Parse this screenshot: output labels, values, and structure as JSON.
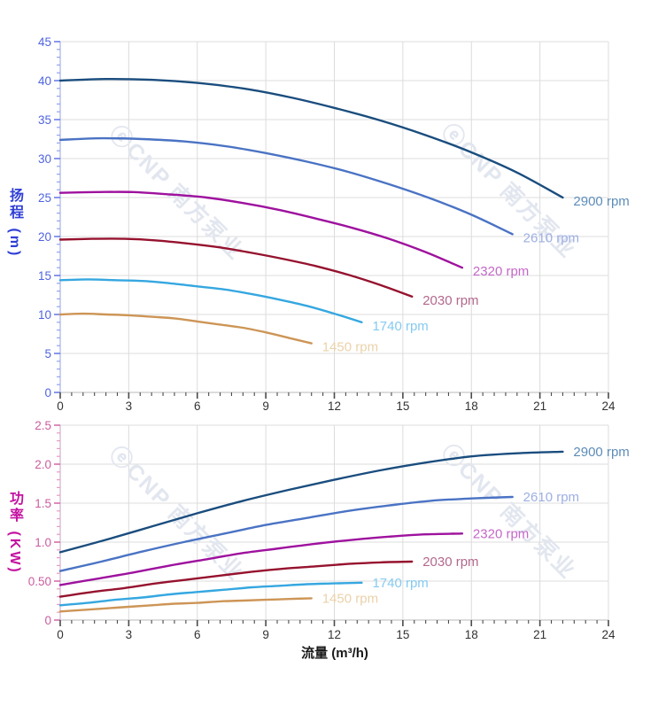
{
  "watermark": {
    "text": "ⓔCNP 南方泵业",
    "color": "#e2e6ef"
  },
  "grid_color": "#dcdcdc",
  "x_axis_style": {
    "line": "#c6c6c6",
    "tick": "#4a4a4a",
    "tick_label": "#333333",
    "title_color": "#1a1a1a"
  },
  "chart_data": [
    {
      "type": "line",
      "title": "",
      "xlabel": "流量 (m³/h)",
      "ylabel": "扬程 (m)",
      "xlim": [
        0,
        24
      ],
      "ylim": [
        0,
        45
      ],
      "x_major_step": 3,
      "x_minor_step": 0.5,
      "y_major_step": 5,
      "y_minor_step": 1,
      "x_tick_labels": [
        "0",
        "3",
        "6",
        "9",
        "12",
        "15",
        "18",
        "21",
        "24"
      ],
      "y_tick_labels": [
        "0",
        "5",
        "10",
        "15",
        "20",
        "25",
        "30",
        "35",
        "40",
        "45"
      ],
      "grid": true,
      "legend_position": "end-of-line",
      "axis_style": {
        "line": "#b2bdee",
        "major_tick": "#6b7ee6",
        "minor_tick": "#93a3ec",
        "tick_label": "#4f64e0",
        "title_color": "#2f3fd6"
      },
      "series": [
        {
          "name": "2900 rpm",
          "color": "#1a4d7e",
          "label_color": "#5d8cb8",
          "points": [
            [
              0,
              40.0
            ],
            [
              2,
              40.2
            ],
            [
              4,
              40.1
            ],
            [
              6,
              39.7
            ],
            [
              8,
              39.0
            ],
            [
              10,
              37.9
            ],
            [
              12,
              36.5
            ],
            [
              14,
              34.9
            ],
            [
              16,
              33.0
            ],
            [
              18,
              30.8
            ],
            [
              20,
              28.2
            ],
            [
              22,
              25.0
            ]
          ]
        },
        {
          "name": "2610 rpm",
          "color": "#4a73c4",
          "label_color": "#9dafe4",
          "points": [
            [
              0,
              32.4
            ],
            [
              1.8,
              32.6
            ],
            [
              3.6,
              32.5
            ],
            [
              5.4,
              32.2
            ],
            [
              7.2,
              31.6
            ],
            [
              9,
              30.7
            ],
            [
              10.8,
              29.6
            ],
            [
              12.6,
              28.3
            ],
            [
              14.4,
              26.7
            ],
            [
              16.2,
              24.9
            ],
            [
              18,
              22.8
            ],
            [
              19.8,
              20.3
            ]
          ]
        },
        {
          "name": "2320 rpm",
          "color": "#9e119e",
          "label_color": "#c468c8",
          "points": [
            [
              0,
              25.6
            ],
            [
              1.6,
              25.7
            ],
            [
              3.2,
              25.7
            ],
            [
              4.8,
              25.4
            ],
            [
              6.4,
              25.0
            ],
            [
              8,
              24.3
            ],
            [
              9.6,
              23.4
            ],
            [
              11.2,
              22.3
            ],
            [
              12.8,
              21.1
            ],
            [
              14.4,
              19.7
            ],
            [
              16,
              18.0
            ],
            [
              17.6,
              16.0
            ]
          ]
        },
        {
          "name": "2030 rpm",
          "color": "#96122e",
          "label_color": "#b2688c",
          "points": [
            [
              0,
              19.6
            ],
            [
              1.4,
              19.7
            ],
            [
              2.8,
              19.7
            ],
            [
              4.2,
              19.5
            ],
            [
              5.6,
              19.1
            ],
            [
              7,
              18.6
            ],
            [
              8.4,
              17.9
            ],
            [
              9.8,
              17.1
            ],
            [
              11.2,
              16.2
            ],
            [
              12.6,
              15.1
            ],
            [
              14,
              13.8
            ],
            [
              15.4,
              12.3
            ]
          ]
        },
        {
          "name": "1740 rpm",
          "color": "#35a7e0",
          "label_color": "#85caf0",
          "points": [
            [
              0,
              14.4
            ],
            [
              1.2,
              14.5
            ],
            [
              2.4,
              14.4
            ],
            [
              3.6,
              14.3
            ],
            [
              4.8,
              14.0
            ],
            [
              6,
              13.6
            ],
            [
              7.2,
              13.2
            ],
            [
              8.4,
              12.6
            ],
            [
              9.6,
              11.9
            ],
            [
              10.8,
              11.1
            ],
            [
              12,
              10.1
            ],
            [
              13.2,
              9.0
            ]
          ]
        },
        {
          "name": "1450 rpm",
          "color": "#cd9556",
          "label_color": "#ead2aa",
          "points": [
            [
              0,
              10.0
            ],
            [
              1,
              10.1
            ],
            [
              2,
              10.0
            ],
            [
              3,
              9.9
            ],
            [
              4,
              9.7
            ],
            [
              5,
              9.5
            ],
            [
              6,
              9.1
            ],
            [
              7,
              8.7
            ],
            [
              8,
              8.3
            ],
            [
              9,
              7.7
            ],
            [
              10,
              7.0
            ],
            [
              11,
              6.3
            ]
          ]
        }
      ]
    },
    {
      "type": "line",
      "title": "",
      "xlabel": "流量 (m³/h)",
      "ylabel": "功率 (KW)",
      "xlim": [
        0,
        24
      ],
      "ylim": [
        0,
        2.5
      ],
      "x_major_step": 3,
      "x_minor_step": 0.5,
      "y_major_step": 0.5,
      "y_minor_step": 0.1,
      "x_tick_labels": [
        "0",
        "3",
        "6",
        "9",
        "12",
        "15",
        "18",
        "21",
        "24"
      ],
      "y_tick_labels": [
        "0",
        "0.50",
        "1.0",
        "1.5",
        "2.0",
        "2.5"
      ],
      "grid": true,
      "legend_position": "end-of-line",
      "axis_style": {
        "line": "#d9bcd6",
        "major_tick": "#d470a8",
        "minor_tick": "#e59cc4",
        "tick_label": "#cb5c9f",
        "title_color": "#c312a0"
      },
      "series": [
        {
          "name": "2900 rpm",
          "color": "#1a4d7e",
          "label_color": "#5d8cb8",
          "points": [
            [
              0,
              0.87
            ],
            [
              2,
              1.03
            ],
            [
              4,
              1.2
            ],
            [
              6,
              1.37
            ],
            [
              8,
              1.53
            ],
            [
              10,
              1.67
            ],
            [
              12,
              1.8
            ],
            [
              14,
              1.92
            ],
            [
              16,
              2.02
            ],
            [
              18,
              2.1
            ],
            [
              20,
              2.14
            ],
            [
              22,
              2.16
            ]
          ]
        },
        {
          "name": "2610 rpm",
          "color": "#4a73c4",
          "label_color": "#9dafe4",
          "points": [
            [
              0,
              0.63
            ],
            [
              1.8,
              0.75
            ],
            [
              3.6,
              0.88
            ],
            [
              5.4,
              1.0
            ],
            [
              7.2,
              1.11
            ],
            [
              9,
              1.22
            ],
            [
              10.8,
              1.31
            ],
            [
              12.6,
              1.4
            ],
            [
              14.4,
              1.47
            ],
            [
              16.2,
              1.53
            ],
            [
              18,
              1.56
            ],
            [
              19.8,
              1.58
            ]
          ]
        },
        {
          "name": "2320 rpm",
          "color": "#9e119e",
          "label_color": "#c468c8",
          "points": [
            [
              0,
              0.45
            ],
            [
              1.6,
              0.53
            ],
            [
              3.2,
              0.61
            ],
            [
              4.8,
              0.7
            ],
            [
              6.4,
              0.78
            ],
            [
              8,
              0.86
            ],
            [
              9.6,
              0.92
            ],
            [
              11.2,
              0.98
            ],
            [
              12.8,
              1.03
            ],
            [
              14.4,
              1.07
            ],
            [
              16,
              1.1
            ],
            [
              17.6,
              1.11
            ]
          ]
        },
        {
          "name": "2030 rpm",
          "color": "#96122e",
          "label_color": "#b2688c",
          "points": [
            [
              0,
              0.3
            ],
            [
              1.4,
              0.36
            ],
            [
              2.8,
              0.41
            ],
            [
              4.2,
              0.47
            ],
            [
              5.6,
              0.52
            ],
            [
              7,
              0.57
            ],
            [
              8.4,
              0.62
            ],
            [
              9.8,
              0.66
            ],
            [
              11.2,
              0.69
            ],
            [
              12.6,
              0.72
            ],
            [
              14,
              0.74
            ],
            [
              15.4,
              0.75
            ]
          ]
        },
        {
          "name": "1740 rpm",
          "color": "#35a7e0",
          "label_color": "#85caf0",
          "points": [
            [
              0,
              0.19
            ],
            [
              1.2,
              0.22
            ],
            [
              2.4,
              0.26
            ],
            [
              3.6,
              0.29
            ],
            [
              4.8,
              0.33
            ],
            [
              6,
              0.36
            ],
            [
              7.2,
              0.39
            ],
            [
              8.4,
              0.42
            ],
            [
              9.6,
              0.44
            ],
            [
              10.8,
              0.46
            ],
            [
              12,
              0.47
            ],
            [
              13.2,
              0.48
            ]
          ]
        },
        {
          "name": "1450 rpm",
          "color": "#cd9556",
          "label_color": "#ead2aa",
          "points": [
            [
              0,
              0.11
            ],
            [
              1,
              0.13
            ],
            [
              2,
              0.15
            ],
            [
              3,
              0.17
            ],
            [
              4,
              0.19
            ],
            [
              5,
              0.21
            ],
            [
              6,
              0.22
            ],
            [
              7,
              0.24
            ],
            [
              8,
              0.25
            ],
            [
              9,
              0.26
            ],
            [
              10,
              0.27
            ],
            [
              11,
              0.28
            ]
          ]
        }
      ]
    }
  ]
}
